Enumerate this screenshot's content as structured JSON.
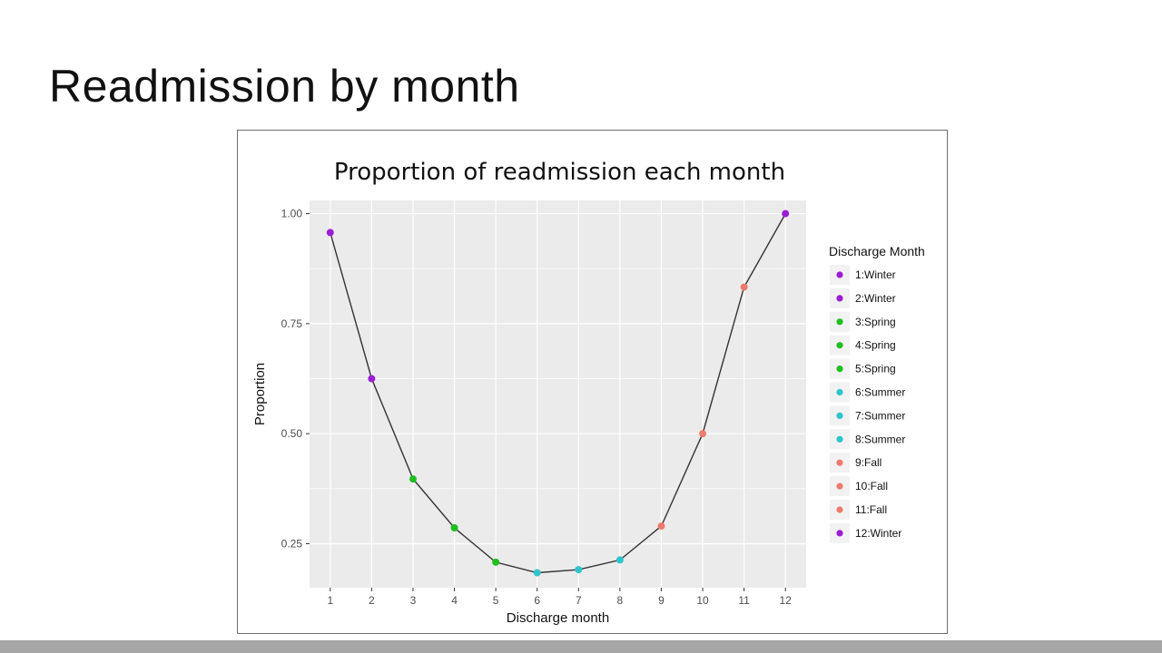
{
  "slide": {
    "title": "Readmission by month"
  },
  "colors": {
    "winter": "#9b1ed2",
    "spring": "#1fbf1f",
    "summer": "#2fc4cc",
    "fall": "#f07a6e",
    "panel": "#ebebeb",
    "line": "#333333",
    "bottom_bar": "#a6a6a6"
  },
  "chart_data": {
    "type": "line",
    "title": "Proportion of readmission each month",
    "xlabel": "Discharge month",
    "ylabel": "Proportion",
    "x": [
      1,
      2,
      3,
      4,
      5,
      6,
      7,
      8,
      9,
      10,
      11,
      12
    ],
    "x_tick_labels": [
      "1",
      "2",
      "3",
      "4",
      "5",
      "6",
      "7",
      "8",
      "9",
      "10",
      "11",
      "12"
    ],
    "y": [
      0.957,
      0.625,
      0.397,
      0.286,
      0.208,
      0.184,
      0.191,
      0.213,
      0.29,
      0.5,
      0.833,
      1.0
    ],
    "y_ticks": [
      0.25,
      0.5,
      0.75,
      1.0
    ],
    "y_tick_labels": [
      "0.25",
      "0.50",
      "0.75",
      "1.00"
    ],
    "xlim": [
      0.5,
      12.5
    ],
    "ylim": [
      0.15,
      1.03
    ],
    "grid": true,
    "legend": {
      "title": "Discharge Month",
      "placement": "right",
      "entries": [
        {
          "label": "1:Winter",
          "season": "winter"
        },
        {
          "label": "2:Winter",
          "season": "winter"
        },
        {
          "label": "3:Spring",
          "season": "spring"
        },
        {
          "label": "4:Spring",
          "season": "spring"
        },
        {
          "label": "5:Spring",
          "season": "spring"
        },
        {
          "label": "6:Summer",
          "season": "summer"
        },
        {
          "label": "7:Summer",
          "season": "summer"
        },
        {
          "label": "8:Summer",
          "season": "summer"
        },
        {
          "label": "9:Fall",
          "season": "fall"
        },
        {
          "label": "10:Fall",
          "season": "fall"
        },
        {
          "label": "11:Fall",
          "season": "fall"
        },
        {
          "label": "12:Winter",
          "season": "winter"
        }
      ]
    },
    "point_seasons": [
      "winter",
      "winter",
      "spring",
      "spring",
      "spring",
      "summer",
      "summer",
      "summer",
      "fall",
      "fall",
      "fall",
      "winter"
    ]
  }
}
